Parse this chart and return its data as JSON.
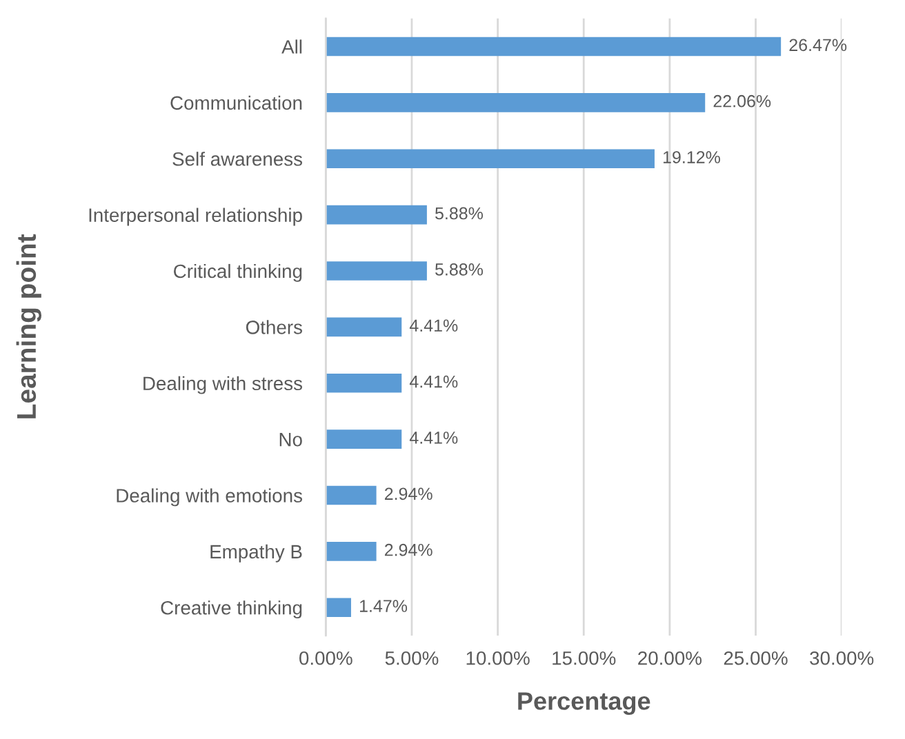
{
  "chart_data": {
    "type": "bar",
    "orientation": "horizontal",
    "xlabel": "Percentage",
    "ylabel": "Learning point",
    "categories": [
      "All",
      "Communication",
      "Self awareness",
      "Interpersonal relationship",
      "Critical thinking",
      "Others",
      "Dealing with stress",
      "No",
      "Dealing with emotions",
      "Empathy B",
      "Creative thinking"
    ],
    "values": [
      26.47,
      22.06,
      19.12,
      5.88,
      5.88,
      4.41,
      4.41,
      4.41,
      2.94,
      2.94,
      1.47
    ],
    "value_labels": [
      "26.47%",
      "22.06%",
      "19.12%",
      "5.88%",
      "5.88%",
      "4.41%",
      "4.41%",
      "4.41%",
      "2.94%",
      "2.94%",
      "1.47%"
    ],
    "color": "#5b9bd5",
    "xlim": [
      0,
      30
    ],
    "xticks": [
      {
        "value": 0,
        "label": "0.00%"
      },
      {
        "value": 5,
        "label": "5.00%"
      },
      {
        "value": 10,
        "label": "10.00%"
      },
      {
        "value": 15,
        "label": "15.00%"
      },
      {
        "value": 20,
        "label": "20.00%"
      },
      {
        "value": 25,
        "label": "25.00%"
      },
      {
        "value": 30,
        "label": "30.00%"
      }
    ],
    "grid": "x",
    "legend": false
  }
}
